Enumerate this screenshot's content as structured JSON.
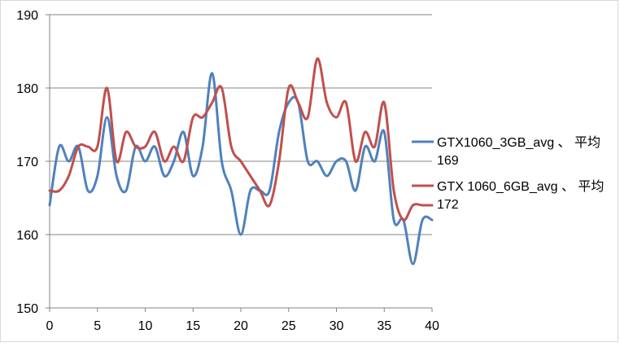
{
  "chart_data": {
    "type": "line",
    "title": "",
    "xlabel": "",
    "ylabel": "",
    "xlim": [
      0,
      40
    ],
    "ylim": [
      150,
      190
    ],
    "x_ticks": [
      0,
      5,
      10,
      15,
      20,
      25,
      30,
      35,
      40
    ],
    "y_ticks": [
      150,
      160,
      170,
      180,
      190
    ],
    "grid": "horizontal",
    "legend": "right",
    "x": [
      0,
      1,
      2,
      3,
      4,
      5,
      6,
      7,
      8,
      9,
      10,
      11,
      12,
      13,
      14,
      15,
      16,
      17,
      18,
      19,
      20,
      21,
      22,
      23,
      24,
      25,
      26,
      27,
      28,
      29,
      30,
      31,
      32,
      33,
      34,
      35,
      36,
      37,
      38,
      39,
      40
    ],
    "series": [
      {
        "name": "GTX1060_3GB_avg 、 平均 169",
        "legend_line1": "GTX1060_3GB_avg 、 平均",
        "legend_line2": "169",
        "color": "#4f81bd",
        "values": [
          164,
          172,
          170,
          172,
          166,
          168,
          176,
          168,
          166,
          172,
          170,
          172,
          168,
          170,
          174,
          168,
          172,
          182,
          170,
          166,
          160,
          166,
          166,
          166,
          174,
          178,
          178,
          170,
          170,
          168,
          170,
          170,
          166,
          172,
          170,
          174,
          162,
          162,
          156,
          162,
          162
        ]
      },
      {
        "name": "GTX 1060_6GB_avg 、 平均 172",
        "legend_line1": "GTX 1060_6GB_avg 、 平均",
        "legend_line2": "172",
        "color": "#c0504d",
        "values": [
          166,
          166,
          168,
          172,
          172,
          172,
          180,
          170,
          174,
          172,
          172,
          174,
          170,
          172,
          170,
          176,
          176,
          178,
          180,
          172,
          170,
          168,
          166,
          164,
          170,
          180,
          178,
          176,
          184,
          178,
          176,
          178,
          170,
          174,
          172,
          178,
          166,
          162,
          164,
          164,
          164
        ]
      }
    ]
  }
}
